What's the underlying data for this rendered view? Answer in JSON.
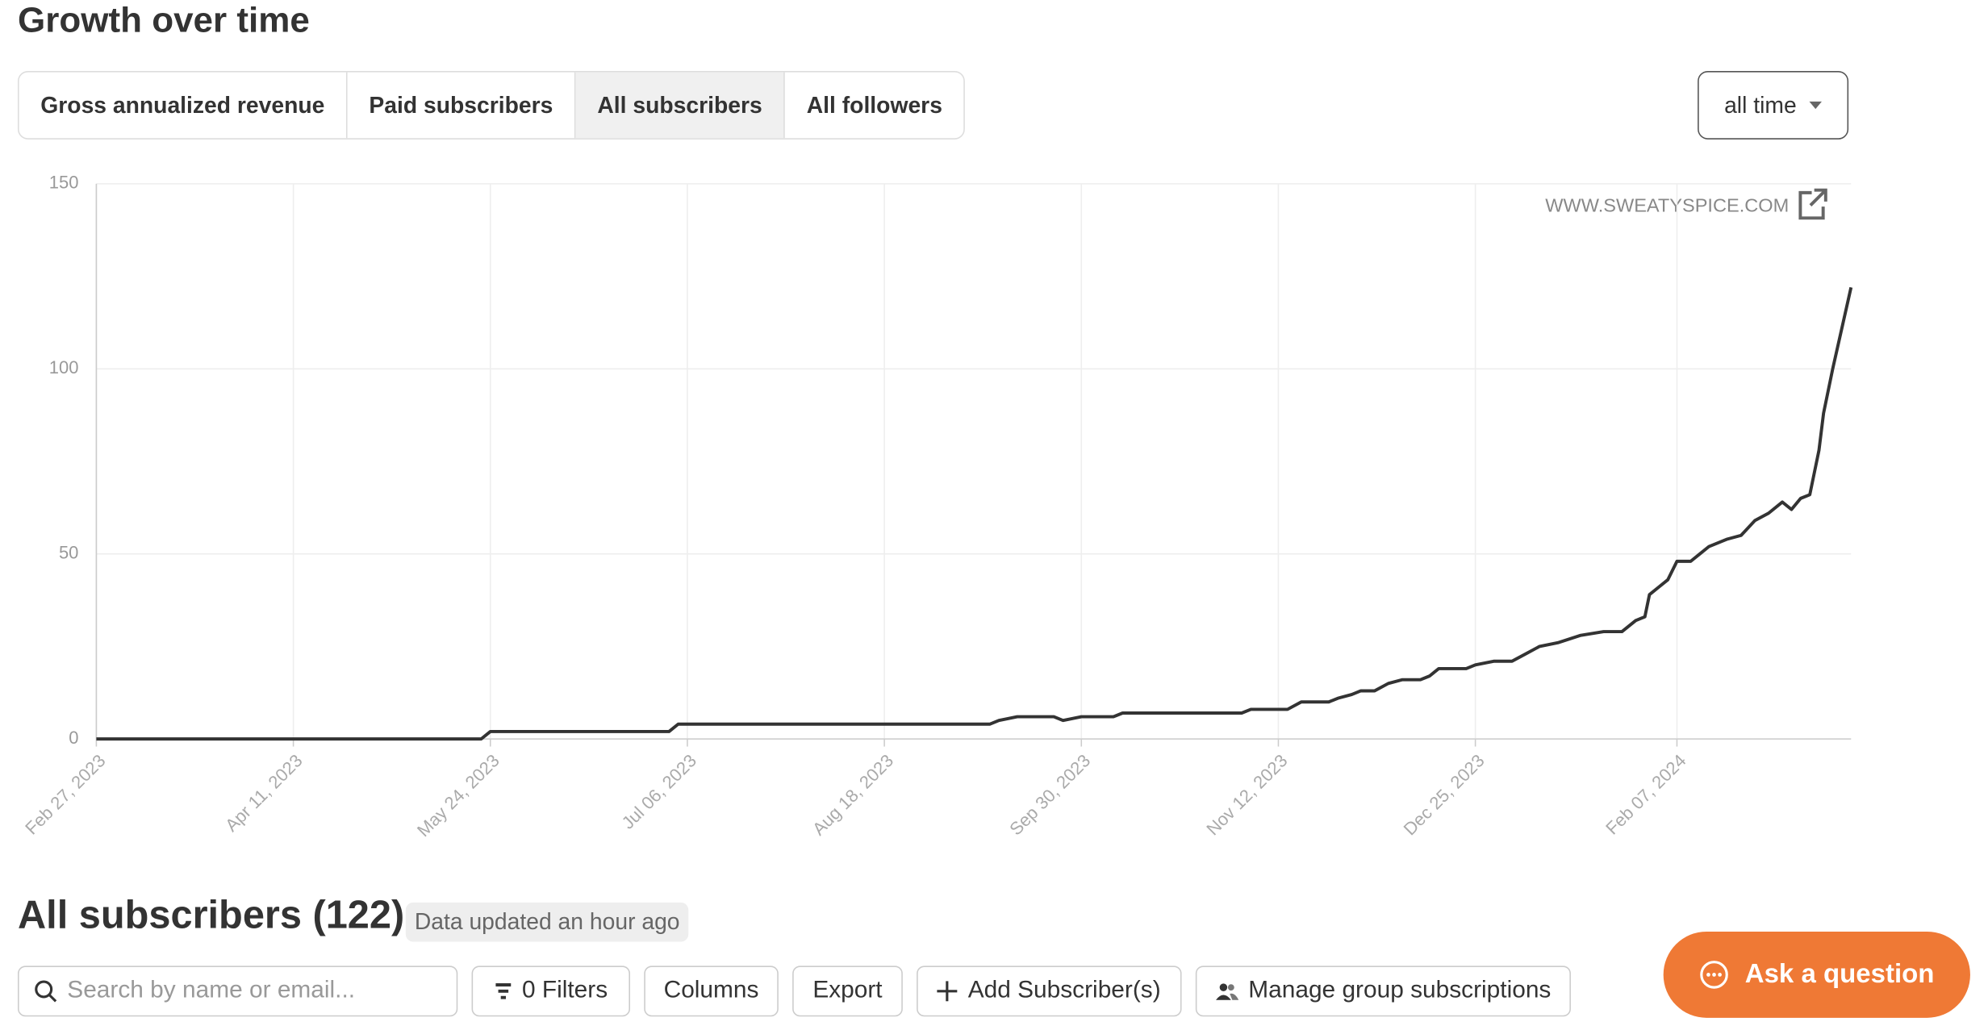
{
  "header": {
    "title": "Growth over time"
  },
  "tabs": [
    "Gross annualized revenue",
    "Paid subscribers",
    "All subscribers",
    "All followers"
  ],
  "range_select": "all time",
  "chart_data": {
    "type": "line",
    "watermark": "WWW.SWEATYSPICE.COM",
    "color": "#333333",
    "grid": true,
    "x": [
      "2023-02-27",
      "2023-05-22",
      "2023-05-24",
      "2023-07-02",
      "2023-07-04",
      "2023-09-10",
      "2023-09-12",
      "2023-09-16",
      "2023-09-24",
      "2023-09-26",
      "2023-09-30",
      "2023-10-07",
      "2023-10-09",
      "2023-11-04",
      "2023-11-06",
      "2023-11-14",
      "2023-11-17",
      "2023-11-23",
      "2023-11-25",
      "2023-11-28",
      "2023-11-30",
      "2023-12-03",
      "2023-12-06",
      "2023-12-09",
      "2023-12-13",
      "2023-12-15",
      "2023-12-17",
      "2023-12-23",
      "2023-12-25",
      "2023-12-29",
      "2024-01-02",
      "2024-01-05",
      "2024-01-08",
      "2024-01-12",
      "2024-01-17",
      "2024-01-22",
      "2024-01-26",
      "2024-01-29",
      "2024-01-31",
      "2024-02-01",
      "2024-02-03",
      "2024-02-05",
      "2024-02-07",
      "2024-02-10",
      "2024-02-12",
      "2024-02-14",
      "2024-02-18",
      "2024-02-21",
      "2024-02-24",
      "2024-02-27",
      "2024-03-01",
      "2024-03-03",
      "2024-03-05",
      "2024-03-07",
      "2024-03-09",
      "2024-03-10",
      "2024-03-12",
      "2024-03-16"
    ],
    "values": [
      0,
      0,
      2,
      2,
      4,
      4,
      5,
      6,
      6,
      5,
      6,
      6,
      7,
      7,
      8,
      8,
      10,
      10,
      11,
      12,
      13,
      13,
      15,
      16,
      16,
      17,
      19,
      19,
      20,
      21,
      21,
      23,
      25,
      26,
      28,
      29,
      29,
      32,
      33,
      39,
      41,
      43,
      48,
      48,
      50,
      52,
      54,
      55,
      59,
      61,
      64,
      62,
      65,
      66,
      78,
      88,
      100,
      122
    ],
    "xlim": [
      "2023-02-27",
      "2024-03-16"
    ],
    "xticks": [
      {
        "value": "2023-02-27",
        "label": "Feb 27, 2023"
      },
      {
        "value": "2023-04-11",
        "label": "Apr 11, 2023"
      },
      {
        "value": "2023-05-24",
        "label": "May 24, 2023"
      },
      {
        "value": "2023-07-06",
        "label": "Jul 06, 2023"
      },
      {
        "value": "2023-08-18",
        "label": "Aug 18, 2023"
      },
      {
        "value": "2023-09-30",
        "label": "Sep 30, 2023"
      },
      {
        "value": "2023-11-12",
        "label": "Nov 12, 2023"
      },
      {
        "value": "2023-12-25",
        "label": "Dec 25, 2023"
      },
      {
        "value": "2024-02-07",
        "label": "Feb 07, 2024"
      }
    ],
    "ylim": [
      0,
      150
    ],
    "yticks": [
      0,
      50,
      100,
      150
    ]
  },
  "subscribers": {
    "title": "All subscribers (122)",
    "status": "Data updated an hour ago"
  },
  "toolbar": {
    "search_placeholder": "Search by name or email...",
    "buttons": [
      "0 Filters",
      "Columns",
      "Export",
      "Add Subscriber(s)",
      "Manage group subscriptions"
    ]
  },
  "chat_button": "Ask a question"
}
